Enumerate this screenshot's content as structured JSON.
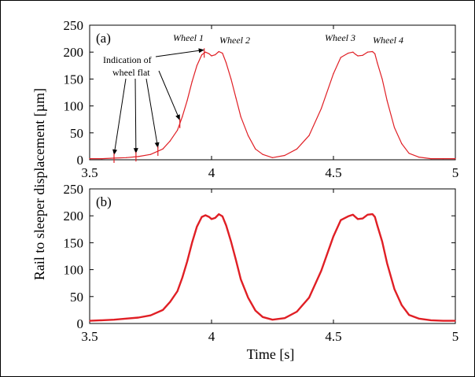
{
  "chart_data": {
    "ylabel": "Rail to sleeper displacement [µm]",
    "xlabel": "Time [s]",
    "series_color": "#e01f25",
    "panels": [
      {
        "label": "(a)",
        "type": "line",
        "xlim": [
          3.5,
          5.0
        ],
        "ylim": [
          0,
          250
        ],
        "xticks": [
          "3.5",
          "4",
          "4.5",
          "5"
        ],
        "yticks": [
          "0",
          "50",
          "100",
          "150",
          "200",
          "250"
        ],
        "x": [
          3.5,
          3.55,
          3.6,
          3.65,
          3.7,
          3.75,
          3.8,
          3.83,
          3.86,
          3.88,
          3.9,
          3.92,
          3.94,
          3.96,
          3.975,
          3.99,
          4.0,
          4.015,
          4.03,
          4.045,
          4.06,
          4.08,
          4.1,
          4.12,
          4.15,
          4.18,
          4.21,
          4.25,
          4.3,
          4.35,
          4.4,
          4.45,
          4.5,
          4.53,
          4.56,
          4.58,
          4.59,
          4.6,
          4.62,
          4.64,
          4.66,
          4.67,
          4.68,
          4.7,
          4.72,
          4.75,
          4.78,
          4.81,
          4.85,
          4.9,
          4.95,
          5.0
        ],
        "y": [
          2,
          2,
          3,
          4,
          6,
          10,
          20,
          35,
          55,
          80,
          110,
          145,
          175,
          195,
          200,
          197,
          193,
          195,
          201,
          198,
          180,
          150,
          115,
          80,
          45,
          20,
          10,
          4,
          8,
          20,
          45,
          95,
          160,
          190,
          198,
          200,
          196,
          193,
          194,
          200,
          201,
          197,
          180,
          150,
          110,
          60,
          30,
          12,
          5,
          2,
          2,
          2
        ],
        "annotations": {
          "wheels": [
            "Wheel 1",
            "Wheel 2",
            "Wheel 3",
            "Wheel 4"
          ],
          "wheel_flat": [
            "Indication of",
            "wheel flat"
          ],
          "flat_points_x": [
            3.6,
            3.69,
            3.78,
            3.87,
            3.97
          ]
        }
      },
      {
        "label": "(b)",
        "type": "line",
        "xlim": [
          3.5,
          5.0
        ],
        "ylim": [
          0,
          250
        ],
        "xticks": [
          "3.5",
          "4",
          "4.5",
          "5"
        ],
        "yticks": [
          "0",
          "50",
          "100",
          "150",
          "200",
          "250"
        ],
        "x": [
          3.5,
          3.55,
          3.6,
          3.65,
          3.7,
          3.75,
          3.8,
          3.83,
          3.86,
          3.88,
          3.9,
          3.92,
          3.94,
          3.96,
          3.975,
          3.99,
          4.0,
          4.015,
          4.03,
          4.045,
          4.06,
          4.08,
          4.1,
          4.12,
          4.15,
          4.18,
          4.21,
          4.25,
          4.3,
          4.35,
          4.4,
          4.45,
          4.5,
          4.53,
          4.56,
          4.58,
          4.59,
          4.6,
          4.62,
          4.64,
          4.66,
          4.67,
          4.68,
          4.7,
          4.72,
          4.75,
          4.78,
          4.81,
          4.85,
          4.9,
          4.95,
          5.0
        ],
        "y": [
          5,
          6,
          7,
          9,
          11,
          15,
          25,
          40,
          60,
          85,
          115,
          150,
          180,
          198,
          201,
          198,
          194,
          196,
          203,
          199,
          182,
          152,
          118,
          82,
          48,
          24,
          12,
          7,
          10,
          22,
          48,
          98,
          162,
          192,
          199,
          202,
          198,
          194,
          195,
          202,
          203,
          198,
          182,
          152,
          112,
          64,
          34,
          16,
          9,
          6,
          5,
          5
        ]
      }
    ]
  }
}
